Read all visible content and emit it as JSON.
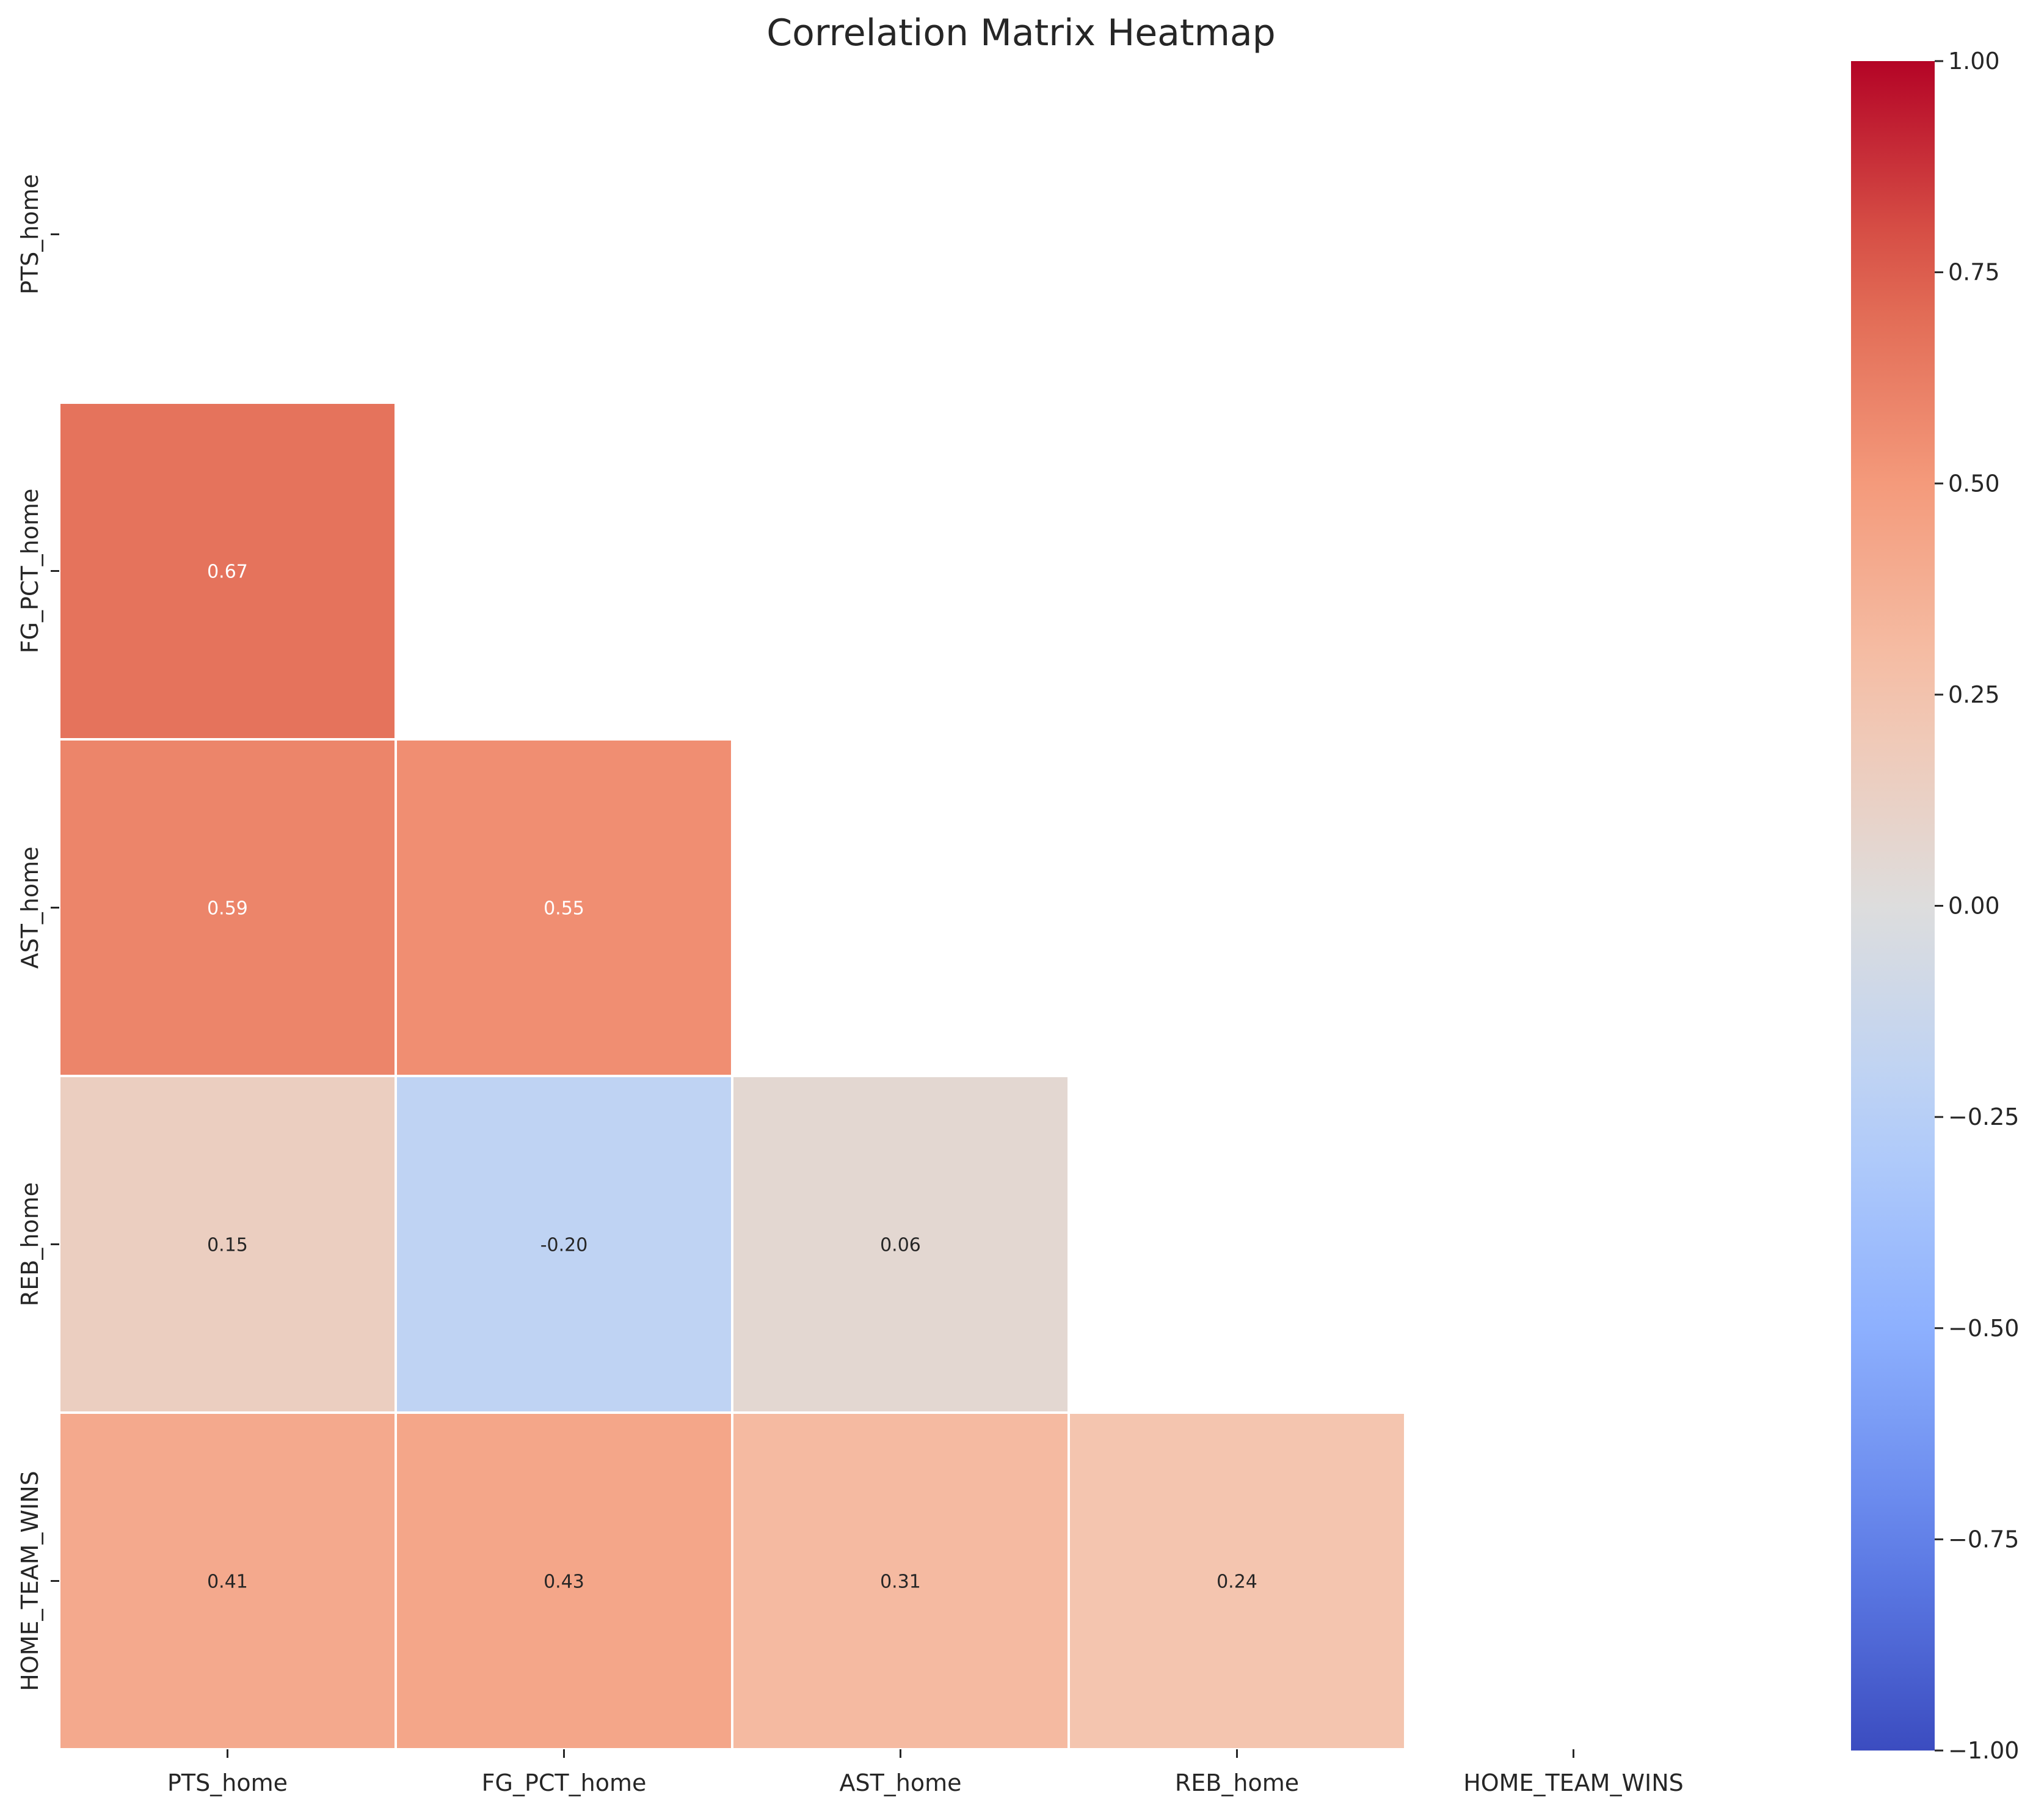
{
  "chart_data": {
    "type": "heatmap",
    "title": "Correlation Matrix Heatmap",
    "xlabel": "",
    "ylabel": "",
    "x_categories": [
      "PTS_home",
      "FG_PCT_home",
      "AST_home",
      "REB_home",
      "HOME_TEAM_WINS"
    ],
    "y_categories": [
      "PTS_home",
      "FG_PCT_home",
      "AST_home",
      "REB_home",
      "HOME_TEAM_WINS"
    ],
    "mask": "upper-triangle-including-diagonal",
    "cells": [
      {
        "row": 1,
        "col": 0,
        "value": 0.67,
        "label": "0.67"
      },
      {
        "row": 2,
        "col": 0,
        "value": 0.59,
        "label": "0.59"
      },
      {
        "row": 2,
        "col": 1,
        "value": 0.55,
        "label": "0.55"
      },
      {
        "row": 3,
        "col": 0,
        "value": 0.15,
        "label": "0.15"
      },
      {
        "row": 3,
        "col": 1,
        "value": -0.2,
        "label": "-0.20"
      },
      {
        "row": 3,
        "col": 2,
        "value": 0.06,
        "label": "0.06"
      },
      {
        "row": 4,
        "col": 0,
        "value": 0.41,
        "label": "0.41"
      },
      {
        "row": 4,
        "col": 1,
        "value": 0.43,
        "label": "0.43"
      },
      {
        "row": 4,
        "col": 2,
        "value": 0.31,
        "label": "0.31"
      },
      {
        "row": 4,
        "col": 3,
        "value": 0.24,
        "label": "0.24"
      }
    ],
    "colorbar": {
      "cmap": "coolwarm",
      "range": [
        -1.0,
        1.0
      ],
      "ticks": [
        1.0,
        0.75,
        0.5,
        0.25,
        0.0,
        -0.25,
        -0.5,
        -0.75,
        -1.0
      ],
      "tick_labels": [
        "1.00",
        "0.75",
        "0.50",
        "0.25",
        "0.00",
        "−0.25",
        "−0.50",
        "−0.75",
        "−1.00"
      ]
    },
    "grid": false,
    "legend": "colorbar-right"
  }
}
